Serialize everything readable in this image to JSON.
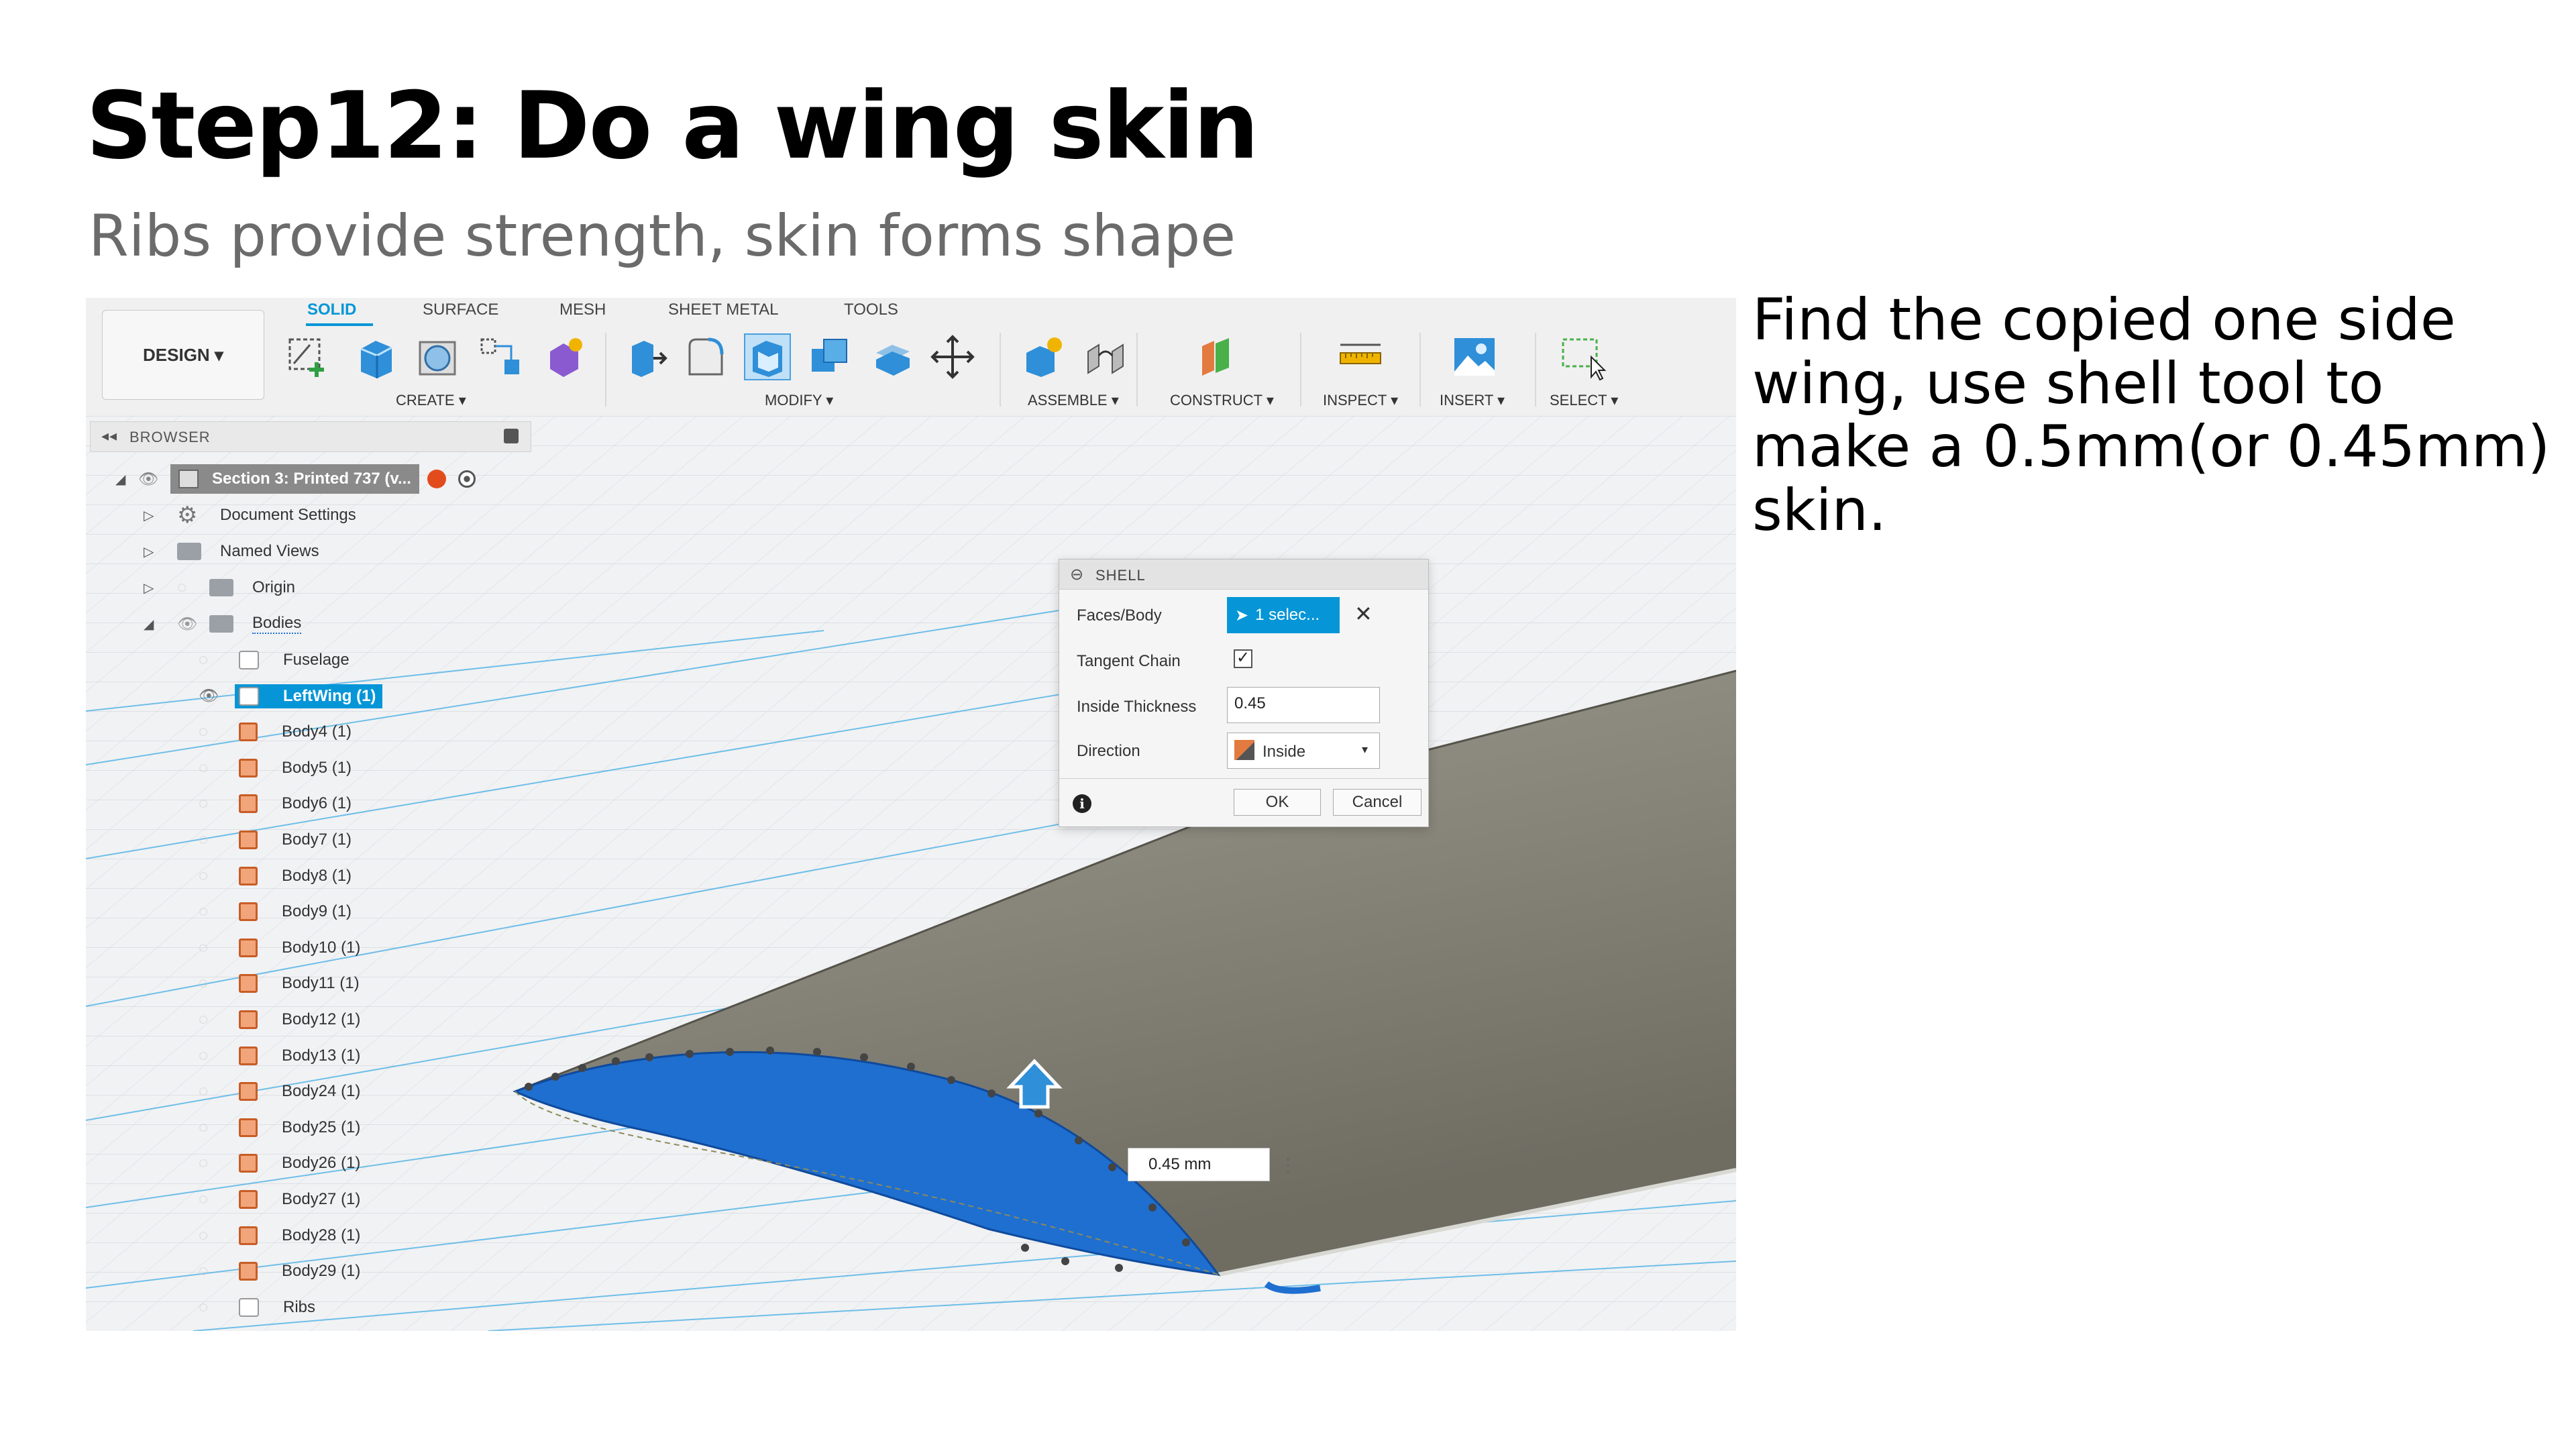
{
  "slide": {
    "title": "Step12: Do a wing skin",
    "subtitle": "Ribs provide strength, skin forms shape",
    "side_text": "Find the copied one side wing, use shell tool to make a 0.5mm(or 0.45mm) skin."
  },
  "toolbar": {
    "design_label": "DESIGN ▾",
    "tabs": [
      "SOLID",
      "SURFACE",
      "MESH",
      "SHEET METAL",
      "TOOLS"
    ],
    "groups": [
      "CREATE ▾",
      "MODIFY ▾",
      "ASSEMBLE ▾",
      "CONSTRUCT ▾",
      "INSPECT ▾",
      "INSERT ▾",
      "SELECT ▾"
    ]
  },
  "browser": {
    "header": "BROWSER",
    "root": "Section 3: Printed 737 (v...",
    "items": [
      "Document Settings",
      "Named Views",
      "Origin",
      "Bodies"
    ],
    "bodies": [
      "Fuselage",
      "LeftWing (1)",
      "Body4 (1)",
      "Body5 (1)",
      "Body6 (1)",
      "Body7 (1)",
      "Body8 (1)",
      "Body9 (1)",
      "Body10 (1)",
      "Body11 (1)",
      "Body12 (1)",
      "Body13 (1)",
      "Body24 (1)",
      "Body25 (1)",
      "Body26 (1)",
      "Body27 (1)",
      "Body28 (1)",
      "Body29 (1)",
      "Ribs"
    ],
    "selected_body": "LeftWing (1)"
  },
  "shell_dialog": {
    "title": "SHELL",
    "faces_label": "Faces/Body",
    "faces_value": "1 selec...",
    "tangent_label": "Tangent Chain",
    "tangent_checked": true,
    "thickness_label": "Inside Thickness",
    "thickness_value": "0.45",
    "direction_label": "Direction",
    "direction_value": "Inside",
    "ok_label": "OK",
    "cancel_label": "Cancel"
  },
  "viewport": {
    "dimension_tooltip": "0.45 mm"
  },
  "colors": {
    "accent": "#0696d7",
    "selection_blue": "#1f6fd0",
    "body_orange": "#e37a3f"
  }
}
